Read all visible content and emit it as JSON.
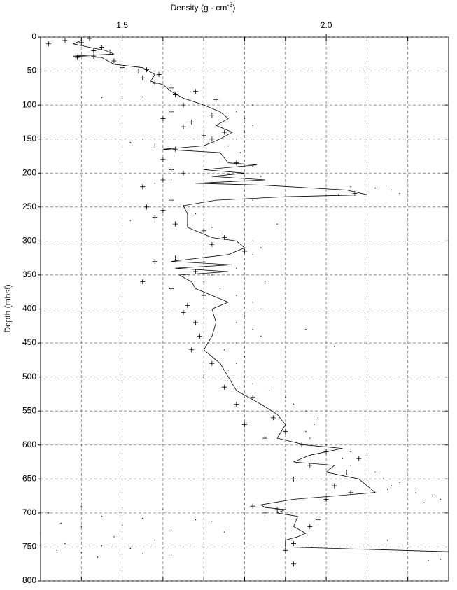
{
  "chart_data": {
    "type": "scatter",
    "x_label": {
      "text": "Density (g · cm",
      "superscript": "-3",
      "suffix": ")"
    },
    "y_label": "Depth (mbsf)",
    "xlim": [
      1.3,
      2.3
    ],
    "xticks": [
      1.5,
      {
        "value": 2,
        "label": "2.0"
      }
    ],
    "x_grid": [
      1.4,
      1.5,
      1.6,
      1.7,
      1.8,
      1.9,
      2.0,
      2.1,
      2.2
    ],
    "ylim": [
      0,
      800
    ],
    "y_inverted": true,
    "yticks": [
      0,
      50,
      100,
      150,
      200,
      250,
      300,
      350,
      400,
      450,
      500,
      550,
      600,
      650,
      700,
      750,
      800
    ],
    "grid": true,
    "series": [
      {
        "mode": "line",
        "color": "#000000",
        "x": [
          1.4,
          1.38,
          1.42,
          1.46,
          1.48,
          1.38,
          1.45,
          1.48,
          1.55,
          1.58,
          1.57,
          1.6,
          1.62,
          1.65,
          1.7,
          1.74,
          1.76,
          1.73,
          1.77,
          1.74,
          1.7,
          1.6,
          1.74,
          1.76,
          1.83,
          1.7,
          1.8,
          1.72,
          1.85,
          1.68,
          1.85,
          2.05,
          2.1,
          1.9,
          1.73,
          1.65,
          1.66,
          1.66,
          1.72,
          1.78,
          1.8,
          1.76,
          1.62,
          1.77,
          1.63,
          1.76,
          1.64,
          1.67,
          1.68,
          1.72,
          1.76,
          1.72,
          1.73,
          1.72,
          1.7,
          1.74,
          1.76,
          1.78,
          1.84,
          1.88,
          1.9,
          1.88,
          1.95,
          2.04,
          1.96,
          1.92,
          2.02,
          2.0,
          2.08,
          2.1,
          2.12,
          2.02,
          1.92,
          1.84,
          1.85,
          1.9,
          1.88,
          1.93,
          1.92,
          1.95,
          1.93,
          1.9,
          1.9,
          2.3
        ],
        "y": [
          5,
          10,
          15,
          20,
          25,
          28,
          30,
          40,
          45,
          55,
          65,
          70,
          80,
          90,
          100,
          110,
          120,
          130,
          140,
          150,
          160,
          165,
          170,
          185,
          188,
          195,
          200,
          205,
          210,
          215,
          218,
          225,
          232,
          235,
          240,
          248,
          260,
          280,
          295,
          300,
          310,
          320,
          330,
          335,
          340,
          345,
          350,
          360,
          370,
          380,
          390,
          400,
          420,
          440,
          460,
          480,
          500,
          520,
          540,
          555,
          570,
          590,
          600,
          605,
          615,
          625,
          630,
          640,
          650,
          660,
          670,
          675,
          680,
          688,
          692,
          695,
          700,
          705,
          720,
          730,
          735,
          740,
          750,
          757
        ]
      },
      {
        "mode": "plus",
        "color": "#000000",
        "x": [
          1.42,
          1.36,
          1.32,
          1.4,
          1.45,
          1.43,
          1.47,
          1.39,
          1.43,
          1.48,
          1.5,
          1.56,
          1.54,
          1.59,
          1.55,
          1.58,
          1.62,
          1.68,
          1.63,
          1.73,
          1.65,
          1.62,
          1.72,
          1.6,
          1.67,
          1.65,
          1.75,
          1.7,
          1.72,
          1.58,
          1.63,
          1.6,
          1.78,
          1.62,
          1.65,
          1.6,
          1.55,
          2.07,
          1.62,
          1.56,
          1.6,
          1.58,
          1.63,
          1.7,
          1.75,
          1.72,
          1.8,
          1.63,
          1.58,
          1.68,
          1.55,
          1.62,
          1.7,
          1.66,
          1.65,
          1.68,
          1.69,
          1.67,
          1.72,
          1.7,
          1.75,
          1.82,
          1.78,
          1.87,
          1.8,
          1.9,
          1.85,
          1.94,
          2.0,
          2.08,
          1.96,
          2.05,
          1.92,
          2.02,
          2.06,
          2.0,
          1.82,
          1.88,
          1.85,
          1.98,
          1.96,
          1.92,
          1.9,
          1.92
        ],
        "y": [
          2,
          5,
          10,
          8,
          15,
          20,
          22,
          30,
          28,
          35,
          45,
          48,
          50,
          55,
          60,
          68,
          75,
          80,
          85,
          92,
          100,
          110,
          115,
          120,
          125,
          132,
          140,
          145,
          150,
          160,
          165,
          180,
          185,
          195,
          200,
          210,
          220,
          230,
          240,
          250,
          255,
          265,
          275,
          285,
          295,
          305,
          315,
          325,
          330,
          345,
          360,
          370,
          380,
          395,
          405,
          420,
          440,
          460,
          480,
          500,
          515,
          530,
          540,
          560,
          570,
          580,
          590,
          600,
          610,
          620,
          630,
          640,
          650,
          660,
          670,
          680,
          690,
          695,
          700,
          710,
          720,
          745,
          755,
          775
        ]
      },
      {
        "mode": "dot",
        "color": "#000000",
        "x": [
          1.4,
          1.45,
          1.5,
          1.55,
          1.82,
          1.78,
          1.8,
          1.82,
          1.8,
          1.78,
          1.76,
          1.79,
          1.82,
          1.84,
          1.62,
          1.58,
          2.06,
          2.12,
          2.16,
          2.2,
          2.18,
          2.03,
          1.82,
          1.7,
          1.68,
          1.7,
          1.72,
          1.74,
          1.82,
          1.84,
          1.82,
          1.7,
          1.78,
          1.72,
          1.7,
          1.74,
          1.78,
          1.82,
          1.84,
          1.8,
          1.78,
          1.82,
          1.84,
          1.78,
          1.75,
          1.8,
          1.78,
          1.76,
          1.8,
          1.82,
          1.86,
          1.9,
          1.92,
          1.95,
          1.98,
          1.97,
          1.95,
          1.96,
          2.0,
          2.06,
          2.1,
          2.04,
          2.06,
          2.12,
          2.14,
          2.18,
          2.16,
          2.15,
          2.22,
          2.26,
          2.28,
          2.24,
          1.82,
          1.4,
          1.5,
          1.6,
          1.32,
          1.45,
          1.55,
          1.68,
          1.72,
          1.35,
          1.5,
          1.4,
          1.62,
          1.75,
          1.3,
          1.48,
          1.58,
          1.36,
          1.45,
          1.65,
          1.52,
          1.34,
          1.4,
          1.55,
          1.62,
          1.44,
          2.28,
          2.25,
          2.15,
          2.1,
          2.02,
          1.95,
          1.9,
          1.85,
          1.55,
          1.52,
          1.52,
          1.88
        ],
        "y": [
          88,
          89,
          90,
          88,
          100,
          110,
          120,
          130,
          140,
          150,
          160,
          170,
          190,
          205,
          210,
          215,
          220,
          222,
          225,
          228,
          230,
          232,
          240,
          250,
          260,
          270,
          280,
          290,
          300,
          310,
          320,
          330,
          340,
          350,
          360,
          370,
          380,
          390,
          400,
          410,
          420,
          430,
          440,
          450,
          460,
          470,
          480,
          490,
          500,
          510,
          520,
          530,
          540,
          550,
          560,
          570,
          580,
          590,
          600,
          610,
          615,
          620,
          630,
          640,
          650,
          655,
          660,
          665,
          670,
          675,
          680,
          685,
          690,
          690,
          692,
          695,
          700,
          705,
          708,
          710,
          712,
          715,
          718,
          720,
          725,
          728,
          730,
          735,
          740,
          745,
          748,
          750,
          752,
          755,
          758,
          760,
          762,
          765,
          768,
          770,
          740,
          760,
          455,
          430,
          400,
          360,
          150,
          155,
          270,
          275
        ]
      }
    ]
  }
}
